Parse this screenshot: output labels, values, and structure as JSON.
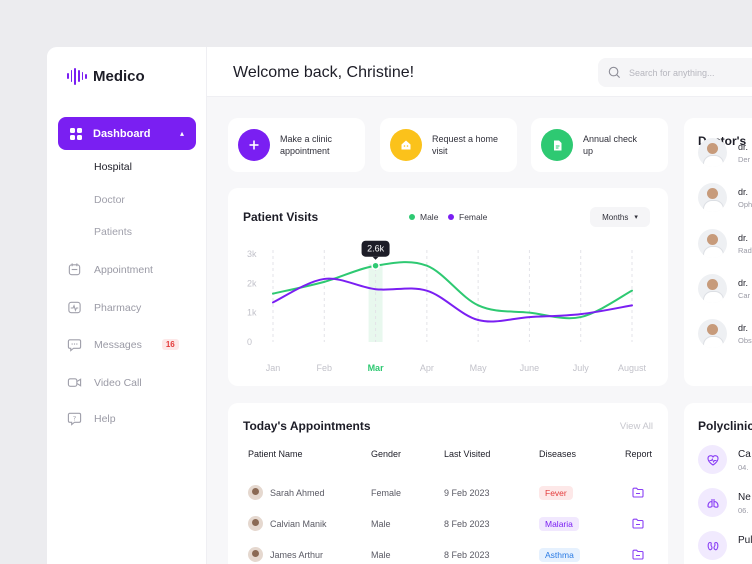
{
  "app": {
    "name": "Medico",
    "accent": "#7a1ff2"
  },
  "sidebar": {
    "dashboard_label": "Dashboard",
    "sub_items": [
      "Hospital",
      "Doctor",
      "Patients"
    ],
    "items": [
      {
        "label": "Appointment",
        "icon": "calendar-icon"
      },
      {
        "label": "Pharmacy",
        "icon": "pulse-icon"
      },
      {
        "label": "Messages",
        "icon": "chat-icon",
        "badge": "16"
      },
      {
        "label": "Video Call",
        "icon": "video-icon"
      },
      {
        "label": "Help",
        "icon": "help-icon"
      }
    ]
  },
  "header": {
    "welcome": "Welcome back, Christine!",
    "search_placeholder": "Search for anything..."
  },
  "quick_actions": [
    {
      "line1": "Make a clinic",
      "line2": "appointment",
      "color": "#7a1ff2",
      "icon": "plus-icon"
    },
    {
      "line1": "Request a home",
      "line2": "visit",
      "color": "#fbc21b",
      "icon": "home-icon"
    },
    {
      "line1": "Annual check",
      "line2": "up",
      "color": "#2ec972",
      "icon": "file-icon"
    }
  ],
  "visits": {
    "title": "Patient Visits",
    "period": "Months",
    "legend": {
      "male": "Male",
      "female": "Female"
    },
    "male_color": "#2ec972",
    "female_color": "#7a1ff2",
    "tooltip": "2.6k"
  },
  "chart_data": {
    "type": "line",
    "categories": [
      "Jan",
      "Feb",
      "Mar",
      "Apr",
      "May",
      "June",
      "July",
      "August"
    ],
    "y_ticks": [
      "0",
      "1k",
      "2k",
      "3k"
    ],
    "ylim": [
      0,
      3000
    ],
    "highlight": "Mar",
    "series": [
      {
        "name": "Male",
        "values": [
          1650,
          2050,
          2600,
          2600,
          1250,
          1000,
          850,
          1750
        ]
      },
      {
        "name": "Female",
        "values": [
          1350,
          2150,
          1800,
          1750,
          750,
          850,
          950,
          1250
        ]
      }
    ]
  },
  "appointments": {
    "title": "Today's Appointments",
    "view_all": "View All",
    "columns": [
      "Patient Name",
      "Gender",
      "Last Visited",
      "Diseases",
      "Report"
    ],
    "rows": [
      {
        "name": "Sarah Ahmed",
        "gender": "Female",
        "last": "9 Feb 2023",
        "disease": "Fever",
        "pill_bg": "#fde8e8",
        "pill_fg": "#e33a3a"
      },
      {
        "name": "Calvian Manik",
        "gender": "Male",
        "last": "8 Feb 2023",
        "disease": "Malaria",
        "pill_bg": "#f1e8fe",
        "pill_fg": "#7a1ff2"
      },
      {
        "name": "James Arthur",
        "gender": "Male",
        "last": "8 Feb 2023",
        "disease": "Asthma",
        "pill_bg": "#e6f1fe",
        "pill_fg": "#2a7be4"
      }
    ]
  },
  "doctors": {
    "title": "Doctor's",
    "items": [
      {
        "name": "dr.",
        "spec": "Der"
      },
      {
        "name": "dr.",
        "spec": "Oph"
      },
      {
        "name": "dr.",
        "spec": "Rad"
      },
      {
        "name": "dr.",
        "spec": "Car"
      },
      {
        "name": "dr.",
        "spec": "Obs"
      }
    ]
  },
  "polyclinic": {
    "title": "Polyclinic",
    "items": [
      {
        "name": "Ca",
        "sub": "04.",
        "icon": "heart-icon"
      },
      {
        "name": "Ne",
        "sub": "06.",
        "icon": "lungs-icon"
      },
      {
        "name": "Pul",
        "sub": "",
        "icon": "kidney-icon"
      }
    ]
  }
}
